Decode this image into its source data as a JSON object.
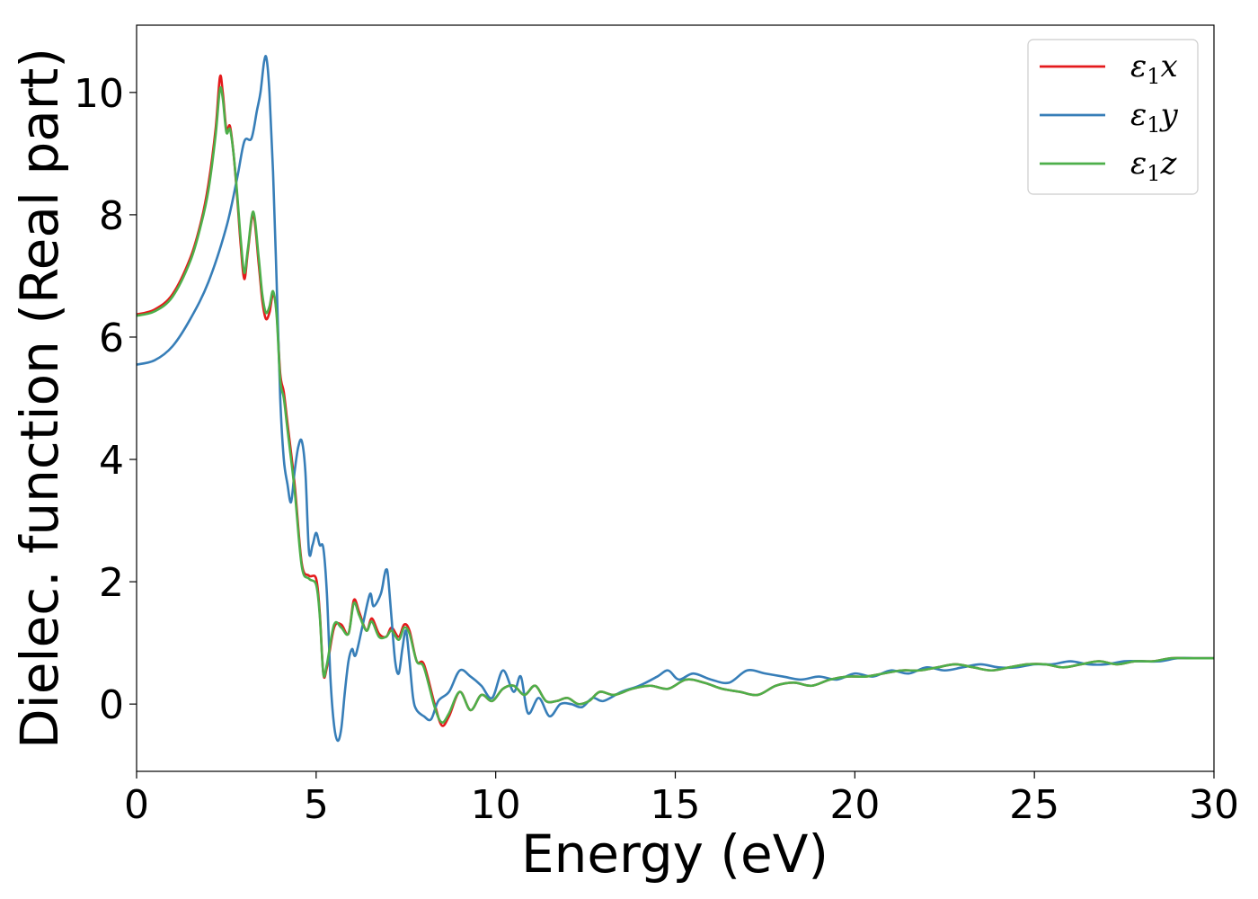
{
  "chart_data": {
    "type": "line",
    "title": "",
    "xlabel": "Energy (eV)",
    "ylabel": "Dielec. function (Real part)",
    "xlim": [
      0,
      30
    ],
    "ylim": [
      -1.1,
      11.1
    ],
    "xticks": [
      0,
      5,
      10,
      15,
      20,
      25,
      30
    ],
    "yticks": [
      0,
      2,
      4,
      6,
      8,
      10
    ],
    "grid": false,
    "legend_position": "top-right",
    "series": [
      {
        "name": "ε₁x",
        "legend_base": "ε",
        "legend_sub": "1",
        "legend_suffix": "x",
        "color": "#e41a1c",
        "x": [
          0,
          0.5,
          1.0,
          1.5,
          1.8,
          2.0,
          2.2,
          2.32,
          2.4,
          2.5,
          2.6,
          2.7,
          2.8,
          2.9,
          3.0,
          3.1,
          3.25,
          3.4,
          3.5,
          3.6,
          3.7,
          3.8,
          3.9,
          4.0,
          4.1,
          4.2,
          4.4,
          4.6,
          4.8,
          5.0,
          5.1,
          5.2,
          5.3,
          5.5,
          5.7,
          5.9,
          6.05,
          6.2,
          6.4,
          6.55,
          6.75,
          6.95,
          7.1,
          7.3,
          7.45,
          7.6,
          7.8,
          8.0,
          8.3,
          8.5,
          8.7,
          9.0,
          9.3,
          9.6,
          9.9,
          10.2,
          10.5,
          10.8,
          11.1,
          11.4,
          11.7,
          12.0,
          12.3,
          12.6,
          12.9,
          13.3,
          13.8,
          14.3,
          14.8,
          15.3,
          15.8,
          16.3,
          16.8,
          17.3,
          17.8,
          18.3,
          18.8,
          19.3,
          19.8,
          20.3,
          20.8,
          21.3,
          21.8,
          22.3,
          22.8,
          23.3,
          23.8,
          24.3,
          24.8,
          25.3,
          25.8,
          26.3,
          26.8,
          27.3,
          27.8,
          28.3,
          28.8,
          29.3,
          30.0
        ],
        "values": [
          6.37,
          6.45,
          6.7,
          7.3,
          7.9,
          8.5,
          9.4,
          10.25,
          10.0,
          9.4,
          9.45,
          9.0,
          8.3,
          7.5,
          6.95,
          7.4,
          8.0,
          7.2,
          6.6,
          6.3,
          6.4,
          6.7,
          6.4,
          5.4,
          5.1,
          4.6,
          3.6,
          2.3,
          2.1,
          2.05,
          1.5,
          0.5,
          0.6,
          1.25,
          1.3,
          1.15,
          1.7,
          1.5,
          1.2,
          1.4,
          1.15,
          1.1,
          1.25,
          1.1,
          1.3,
          1.2,
          0.7,
          0.65,
          0.0,
          -0.35,
          -0.2,
          0.2,
          -0.1,
          0.15,
          0.05,
          0.25,
          0.3,
          0.15,
          0.3,
          0.05,
          0.05,
          0.1,
          0.0,
          0.05,
          0.2,
          0.15,
          0.25,
          0.3,
          0.25,
          0.4,
          0.35,
          0.25,
          0.2,
          0.15,
          0.3,
          0.35,
          0.3,
          0.4,
          0.45,
          0.45,
          0.5,
          0.55,
          0.55,
          0.6,
          0.65,
          0.6,
          0.55,
          0.6,
          0.65,
          0.65,
          0.6,
          0.65,
          0.7,
          0.65,
          0.7,
          0.7,
          0.75,
          0.75,
          0.75
        ]
      },
      {
        "name": "ε₁y",
        "legend_base": "ε",
        "legend_sub": "1",
        "legend_suffix": "y",
        "color": "#377eb8",
        "x": [
          0,
          0.5,
          1.0,
          1.5,
          2.0,
          2.5,
          2.8,
          3.0,
          3.2,
          3.35,
          3.45,
          3.55,
          3.62,
          3.7,
          3.8,
          3.9,
          4.0,
          4.1,
          4.2,
          4.3,
          4.4,
          4.5,
          4.6,
          4.7,
          4.8,
          4.9,
          5.0,
          5.1,
          5.2,
          5.3,
          5.4,
          5.5,
          5.6,
          5.7,
          5.8,
          5.9,
          6.0,
          6.1,
          6.3,
          6.5,
          6.6,
          6.8,
          6.9,
          6.95,
          7.0,
          7.1,
          7.2,
          7.3,
          7.4,
          7.5,
          7.6,
          7.7,
          7.8,
          8.0,
          8.2,
          8.4,
          8.7,
          9.0,
          9.3,
          9.6,
          9.9,
          10.2,
          10.5,
          10.7,
          10.9,
          11.2,
          11.5,
          11.8,
          12.1,
          12.4,
          12.7,
          13.0,
          13.5,
          14.0,
          14.5,
          14.8,
          15.1,
          15.5,
          16.0,
          16.5,
          17.0,
          17.5,
          18.0,
          18.5,
          19.0,
          19.5,
          20.0,
          20.5,
          21.0,
          21.5,
          22.0,
          22.5,
          23.0,
          23.5,
          24.0,
          24.5,
          25.0,
          25.5,
          26.0,
          26.5,
          27.0,
          27.5,
          28.0,
          28.5,
          29.0,
          29.5,
          30.0
        ],
        "values": [
          5.55,
          5.62,
          5.85,
          6.3,
          6.9,
          7.8,
          8.6,
          9.2,
          9.25,
          9.7,
          10.0,
          10.5,
          10.55,
          10.0,
          8.7,
          6.9,
          5.0,
          4.0,
          3.6,
          3.3,
          3.8,
          4.2,
          4.3,
          3.8,
          2.5,
          2.6,
          2.8,
          2.6,
          2.55,
          1.8,
          0.4,
          -0.35,
          -0.6,
          -0.4,
          0.2,
          0.7,
          0.9,
          0.8,
          1.3,
          1.8,
          1.6,
          1.8,
          2.1,
          2.2,
          2.1,
          1.4,
          0.7,
          0.5,
          0.9,
          1.2,
          0.7,
          0.1,
          -0.1,
          -0.2,
          -0.25,
          0.05,
          0.2,
          0.55,
          0.45,
          0.3,
          0.1,
          0.55,
          0.2,
          0.45,
          -0.15,
          0.1,
          -0.2,
          0.0,
          0.0,
          -0.05,
          0.1,
          0.05,
          0.2,
          0.3,
          0.45,
          0.55,
          0.4,
          0.5,
          0.4,
          0.35,
          0.55,
          0.5,
          0.45,
          0.4,
          0.45,
          0.4,
          0.5,
          0.45,
          0.55,
          0.5,
          0.6,
          0.55,
          0.6,
          0.65,
          0.6,
          0.6,
          0.65,
          0.65,
          0.7,
          0.65,
          0.65,
          0.7,
          0.7,
          0.7,
          0.75,
          0.75,
          0.75
        ]
      },
      {
        "name": "ε₁z",
        "legend_base": "ε",
        "legend_sub": "1",
        "legend_suffix": "z",
        "color": "#4daf4a",
        "x": [
          0,
          0.5,
          1.0,
          1.5,
          1.8,
          2.0,
          2.2,
          2.32,
          2.4,
          2.5,
          2.6,
          2.7,
          2.8,
          2.9,
          3.0,
          3.1,
          3.25,
          3.4,
          3.5,
          3.6,
          3.7,
          3.8,
          3.9,
          4.0,
          4.1,
          4.2,
          4.4,
          4.6,
          4.8,
          5.0,
          5.1,
          5.2,
          5.3,
          5.5,
          5.7,
          5.9,
          6.05,
          6.2,
          6.4,
          6.55,
          6.75,
          6.95,
          7.1,
          7.3,
          7.45,
          7.6,
          7.8,
          8.0,
          8.3,
          8.5,
          8.7,
          9.0,
          9.3,
          9.6,
          9.9,
          10.2,
          10.5,
          10.8,
          11.1,
          11.4,
          11.7,
          12.0,
          12.3,
          12.6,
          12.9,
          13.3,
          13.8,
          14.3,
          14.8,
          15.3,
          15.8,
          16.3,
          16.8,
          17.3,
          17.8,
          18.3,
          18.8,
          19.3,
          19.8,
          20.3,
          20.8,
          21.3,
          21.8,
          22.3,
          22.8,
          23.3,
          23.8,
          24.3,
          24.8,
          25.3,
          25.8,
          26.3,
          26.8,
          27.3,
          27.8,
          28.3,
          28.8,
          29.3,
          30.0
        ],
        "values": [
          6.35,
          6.42,
          6.66,
          7.25,
          7.85,
          8.4,
          9.3,
          10.05,
          9.9,
          9.35,
          9.4,
          9.0,
          8.35,
          7.6,
          7.05,
          7.45,
          8.05,
          7.3,
          6.7,
          6.4,
          6.5,
          6.75,
          6.35,
          5.3,
          5.0,
          4.5,
          3.5,
          2.25,
          2.05,
          1.95,
          1.45,
          0.5,
          0.65,
          1.3,
          1.25,
          1.15,
          1.65,
          1.45,
          1.2,
          1.35,
          1.1,
          1.1,
          1.2,
          1.05,
          1.25,
          1.15,
          0.7,
          0.6,
          -0.05,
          -0.3,
          -0.15,
          0.2,
          -0.1,
          0.15,
          0.05,
          0.25,
          0.3,
          0.15,
          0.3,
          0.05,
          0.05,
          0.1,
          0.0,
          0.05,
          0.2,
          0.15,
          0.25,
          0.3,
          0.25,
          0.4,
          0.35,
          0.25,
          0.2,
          0.15,
          0.3,
          0.35,
          0.3,
          0.4,
          0.45,
          0.45,
          0.5,
          0.55,
          0.55,
          0.6,
          0.65,
          0.6,
          0.55,
          0.6,
          0.65,
          0.65,
          0.6,
          0.65,
          0.7,
          0.65,
          0.7,
          0.7,
          0.75,
          0.75,
          0.75
        ]
      }
    ]
  }
}
